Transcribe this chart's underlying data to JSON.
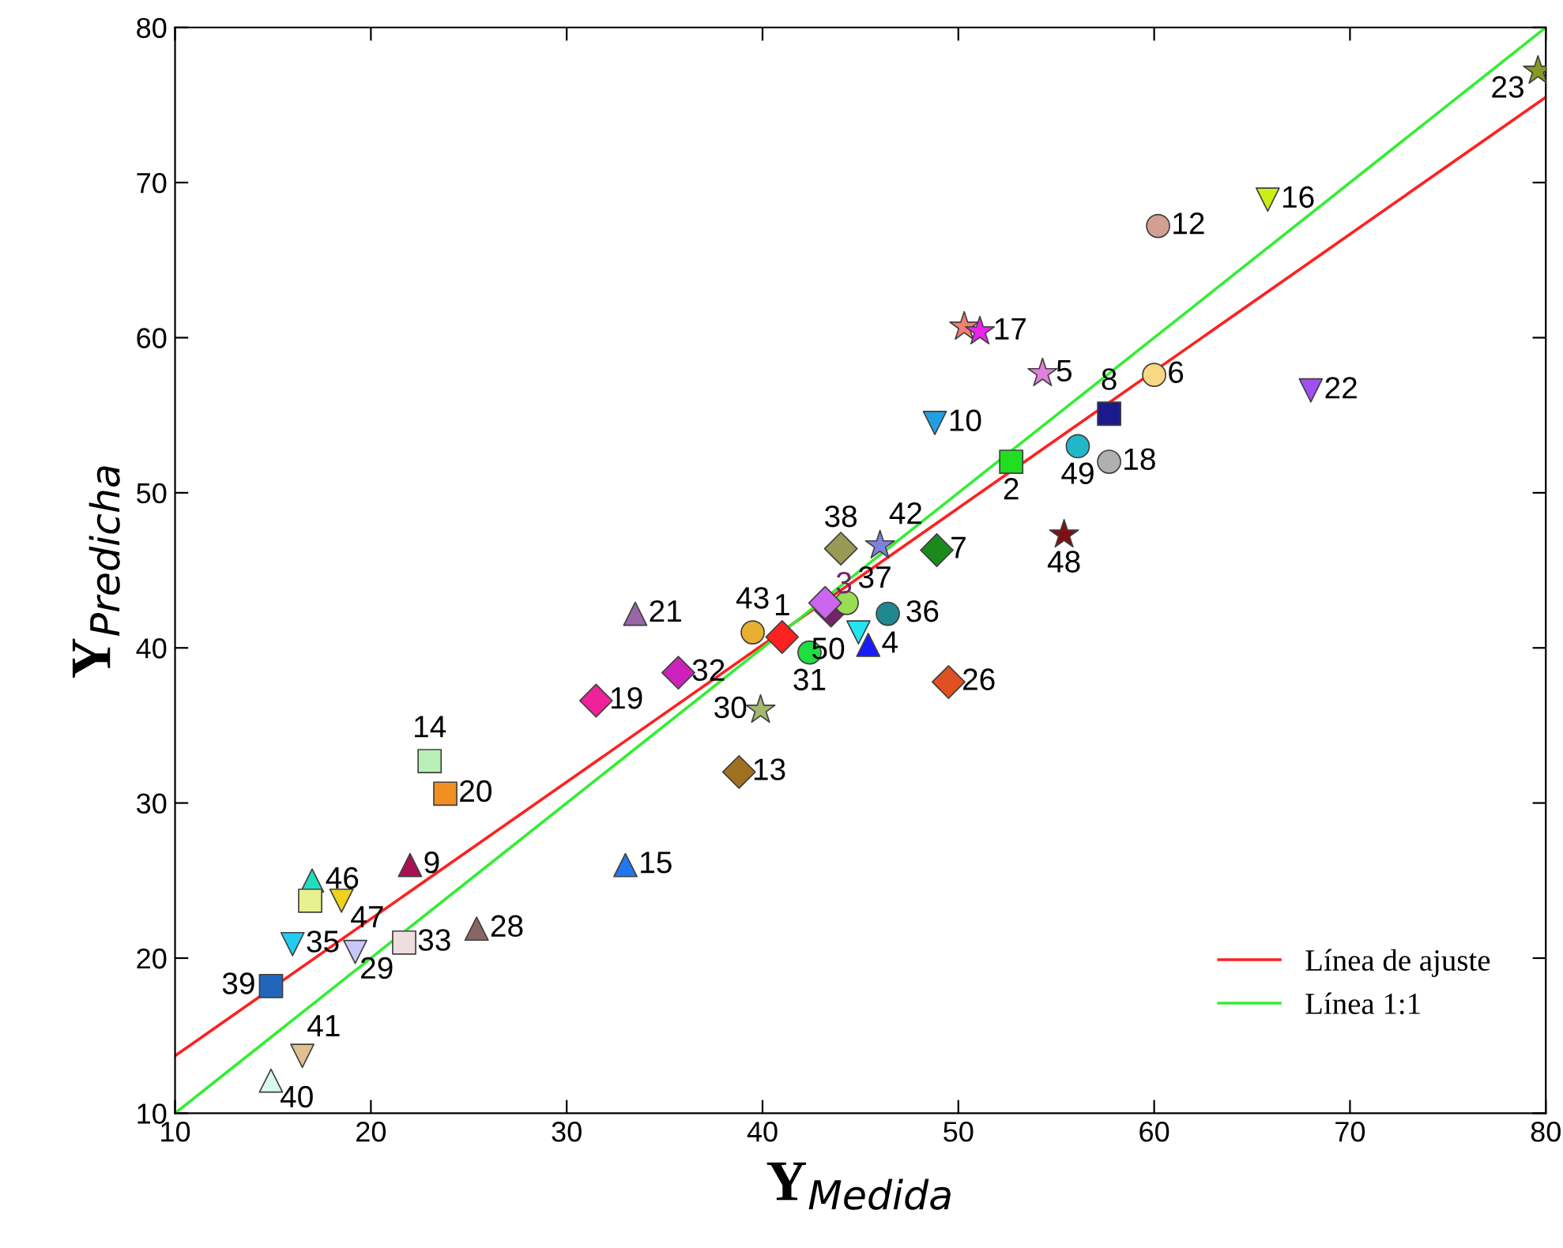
{
  "chart_data": {
    "type": "scatter",
    "xlabel": "Y$_{Medida}$",
    "ylabel": "Y$_{Predicha}$",
    "xlim": [
      10,
      80
    ],
    "ylim": [
      10,
      80
    ],
    "xticks": [
      10,
      20,
      30,
      40,
      50,
      60,
      70,
      80
    ],
    "yticks": [
      10,
      20,
      30,
      40,
      50,
      60,
      70,
      80
    ],
    "grid": false,
    "legend": "bottom right",
    "series": [
      {
        "type": "line",
        "name": "Línea de ajuste",
        "color": "#ff2020",
        "x": [
          10,
          80
        ],
        "values": [
          13.7,
          75.5
        ],
        "marker": "none",
        "line_style": "solid"
      },
      {
        "type": "line",
        "name": "Línea 1:1",
        "color": "#33ee33",
        "x": [
          10,
          80
        ],
        "values": [
          10,
          80
        ],
        "marker": "none",
        "line_style": "solid"
      },
      {
        "name": "1",
        "color": "#ff2020",
        "marker": "diamond",
        "x": [
          41.0
        ],
        "values": [
          40.7
        ]
      },
      {
        "name": "2",
        "color": "#22dd22",
        "marker": "square",
        "x": [
          52.7
        ],
        "values": [
          52.0
        ]
      },
      {
        "name": "4",
        "color": "#1a1aff",
        "marker": "triangle",
        "x": [
          45.4
        ],
        "values": [
          40.2
        ]
      },
      {
        "name": "50",
        "color": "#22e5f0",
        "marker": "triangle_down",
        "x": [
          44.9
        ],
        "values": [
          41.0
        ]
      },
      {
        "name": "5",
        "color": "#e080e0",
        "marker": "star",
        "x": [
          54.3
        ],
        "values": [
          57.7
        ]
      },
      {
        "name": "6",
        "color": "#f8d880",
        "marker": "circle",
        "x": [
          60.0
        ],
        "values": [
          57.6
        ]
      },
      {
        "name": "8",
        "color": "#1a1a8c",
        "marker": "square",
        "x": [
          57.7
        ],
        "values": [
          55.1
        ]
      },
      {
        "name": "10",
        "color": "#20a0e0",
        "marker": "triangle_down",
        "x": [
          48.8
        ],
        "values": [
          54.5
        ]
      },
      {
        "name": "12",
        "color": "#d0a090",
        "marker": "circle",
        "x": [
          60.2
        ],
        "values": [
          67.2
        ]
      },
      {
        "name": "16",
        "color": "#ccee11",
        "marker": "triangle_down",
        "x": [
          65.8
        ],
        "values": [
          68.9
        ]
      },
      {
        "color": "#f08070",
        "marker": "star",
        "x": [
          50.3
        ],
        "values": [
          60.7
        ]
      },
      {
        "name": "17",
        "color": "#ee22ee",
        "marker": "star",
        "x": [
          51.1
        ],
        "values": [
          60.4
        ]
      },
      {
        "name": "18",
        "color": "#b0b0b0",
        "marker": "circle",
        "x": [
          57.7
        ],
        "values": [
          52.0
        ]
      },
      {
        "name": "49",
        "color": "#20b8c8",
        "marker": "circle",
        "x": [
          56.1
        ],
        "values": [
          53.0
        ]
      },
      {
        "name": "22",
        "color": "#a050f0",
        "marker": "triangle_down",
        "x": [
          68.0
        ],
        "values": [
          56.6
        ]
      },
      {
        "name": "23",
        "color": "#889922",
        "marker": "star",
        "x": [
          79.6
        ],
        "values": [
          77.2
        ]
      },
      {
        "name": "48",
        "color": "#801010",
        "marker": "star",
        "x": [
          55.4
        ],
        "values": [
          47.3
        ]
      },
      {
        "name": "7",
        "color": "#1a8a1a",
        "marker": "diamond",
        "x": [
          48.9
        ],
        "values": [
          46.3
        ]
      },
      {
        "name": "42",
        "color": "#8080e0",
        "marker": "star",
        "x": [
          46.0
        ],
        "values": [
          46.6
        ]
      },
      {
        "name": "38",
        "color": "#999955",
        "marker": "diamond",
        "x": [
          44.0
        ],
        "values": [
          46.4
        ]
      },
      {
        "name": "43",
        "color": "#e8b030",
        "marker": "circle",
        "x": [
          39.5
        ],
        "values": [
          41.0
        ]
      },
      {
        "name": "31",
        "color": "#20dd40",
        "marker": "circle",
        "x": [
          42.4
        ],
        "values": [
          39.7
        ]
      },
      {
        "name": "36",
        "color": "#208890",
        "marker": "circle",
        "x": [
          46.4
        ],
        "values": [
          42.2
        ]
      },
      {
        "color": "#cc66ee",
        "marker": "diamond",
        "x": [
          43.2
        ],
        "values": [
          42.9
        ]
      },
      {
        "name": "3",
        "color": "#772266",
        "marker": "diamond",
        "x": [
          43.5
        ],
        "values": [
          42.4
        ]
      },
      {
        "name": "37",
        "color": "#99dd55",
        "marker": "circle",
        "x": [
          44.3
        ],
        "values": [
          42.9
        ]
      },
      {
        "name": "26",
        "color": "#e05020",
        "marker": "diamond",
        "x": [
          49.5
        ],
        "values": [
          37.8
        ]
      },
      {
        "name": "30",
        "color": "#a0b870",
        "marker": "star",
        "x": [
          39.9
        ],
        "values": [
          36.0
        ]
      },
      {
        "name": "13",
        "color": "#a07020",
        "marker": "diamond",
        "x": [
          38.8
        ],
        "values": [
          32.0
        ]
      },
      {
        "name": "32",
        "color": "#cc22bb",
        "marker": "diamond",
        "x": [
          35.7
        ],
        "values": [
          38.4
        ]
      },
      {
        "name": "21",
        "color": "#9966aa",
        "marker": "triangle",
        "x": [
          33.5
        ],
        "values": [
          42.2
        ]
      },
      {
        "name": "19",
        "color": "#ee2299",
        "marker": "diamond",
        "x": [
          31.5
        ],
        "values": [
          36.6
        ]
      },
      {
        "name": "14",
        "color": "#b8f0b8",
        "marker": "square",
        "x": [
          23.0
        ],
        "values": [
          32.7
        ]
      },
      {
        "name": "20",
        "color": "#f09020",
        "marker": "square",
        "x": [
          23.8
        ],
        "values": [
          30.6
        ]
      },
      {
        "name": "9",
        "color": "#aa1155",
        "marker": "triangle",
        "x": [
          22.0
        ],
        "values": [
          26.0
        ]
      },
      {
        "name": "15",
        "color": "#2277ee",
        "marker": "triangle",
        "x": [
          33.0
        ],
        "values": [
          26.0
        ]
      },
      {
        "name": "46",
        "color": "#22ddbb",
        "marker": "triangle",
        "x": [
          17.0
        ],
        "values": [
          25.0
        ]
      },
      {
        "color": "#e8f090",
        "marker": "square",
        "x": [
          16.9
        ],
        "values": [
          23.7
        ]
      },
      {
        "name": "47",
        "color": "#f0d020",
        "marker": "triangle_down",
        "x": [
          18.5
        ],
        "values": [
          23.7
        ]
      },
      {
        "name": "35",
        "color": "#22ccf0",
        "marker": "triangle_down",
        "x": [
          16.0
        ],
        "values": [
          20.9
        ]
      },
      {
        "name": "29",
        "color": "#c8c8f8",
        "marker": "triangle_down",
        "x": [
          19.2
        ],
        "values": [
          20.4
        ]
      },
      {
        "name": "33",
        "color": "#f0dde0",
        "marker": "square",
        "x": [
          21.7
        ],
        "values": [
          21.0
        ]
      },
      {
        "name": "28",
        "color": "#886666",
        "marker": "triangle",
        "x": [
          25.4
        ],
        "values": [
          21.9
        ]
      },
      {
        "name": "39",
        "color": "#2266bb",
        "marker": "square",
        "x": [
          14.9
        ],
        "values": [
          18.2
        ]
      },
      {
        "name": "41",
        "color": "#e0c090",
        "marker": "triangle_down",
        "x": [
          16.5
        ],
        "values": [
          13.7
        ]
      },
      {
        "name": "40",
        "color": "#d8f8f0",
        "marker": "triangle",
        "x": [
          14.9
        ],
        "values": [
          12.1
        ]
      }
    ]
  }
}
